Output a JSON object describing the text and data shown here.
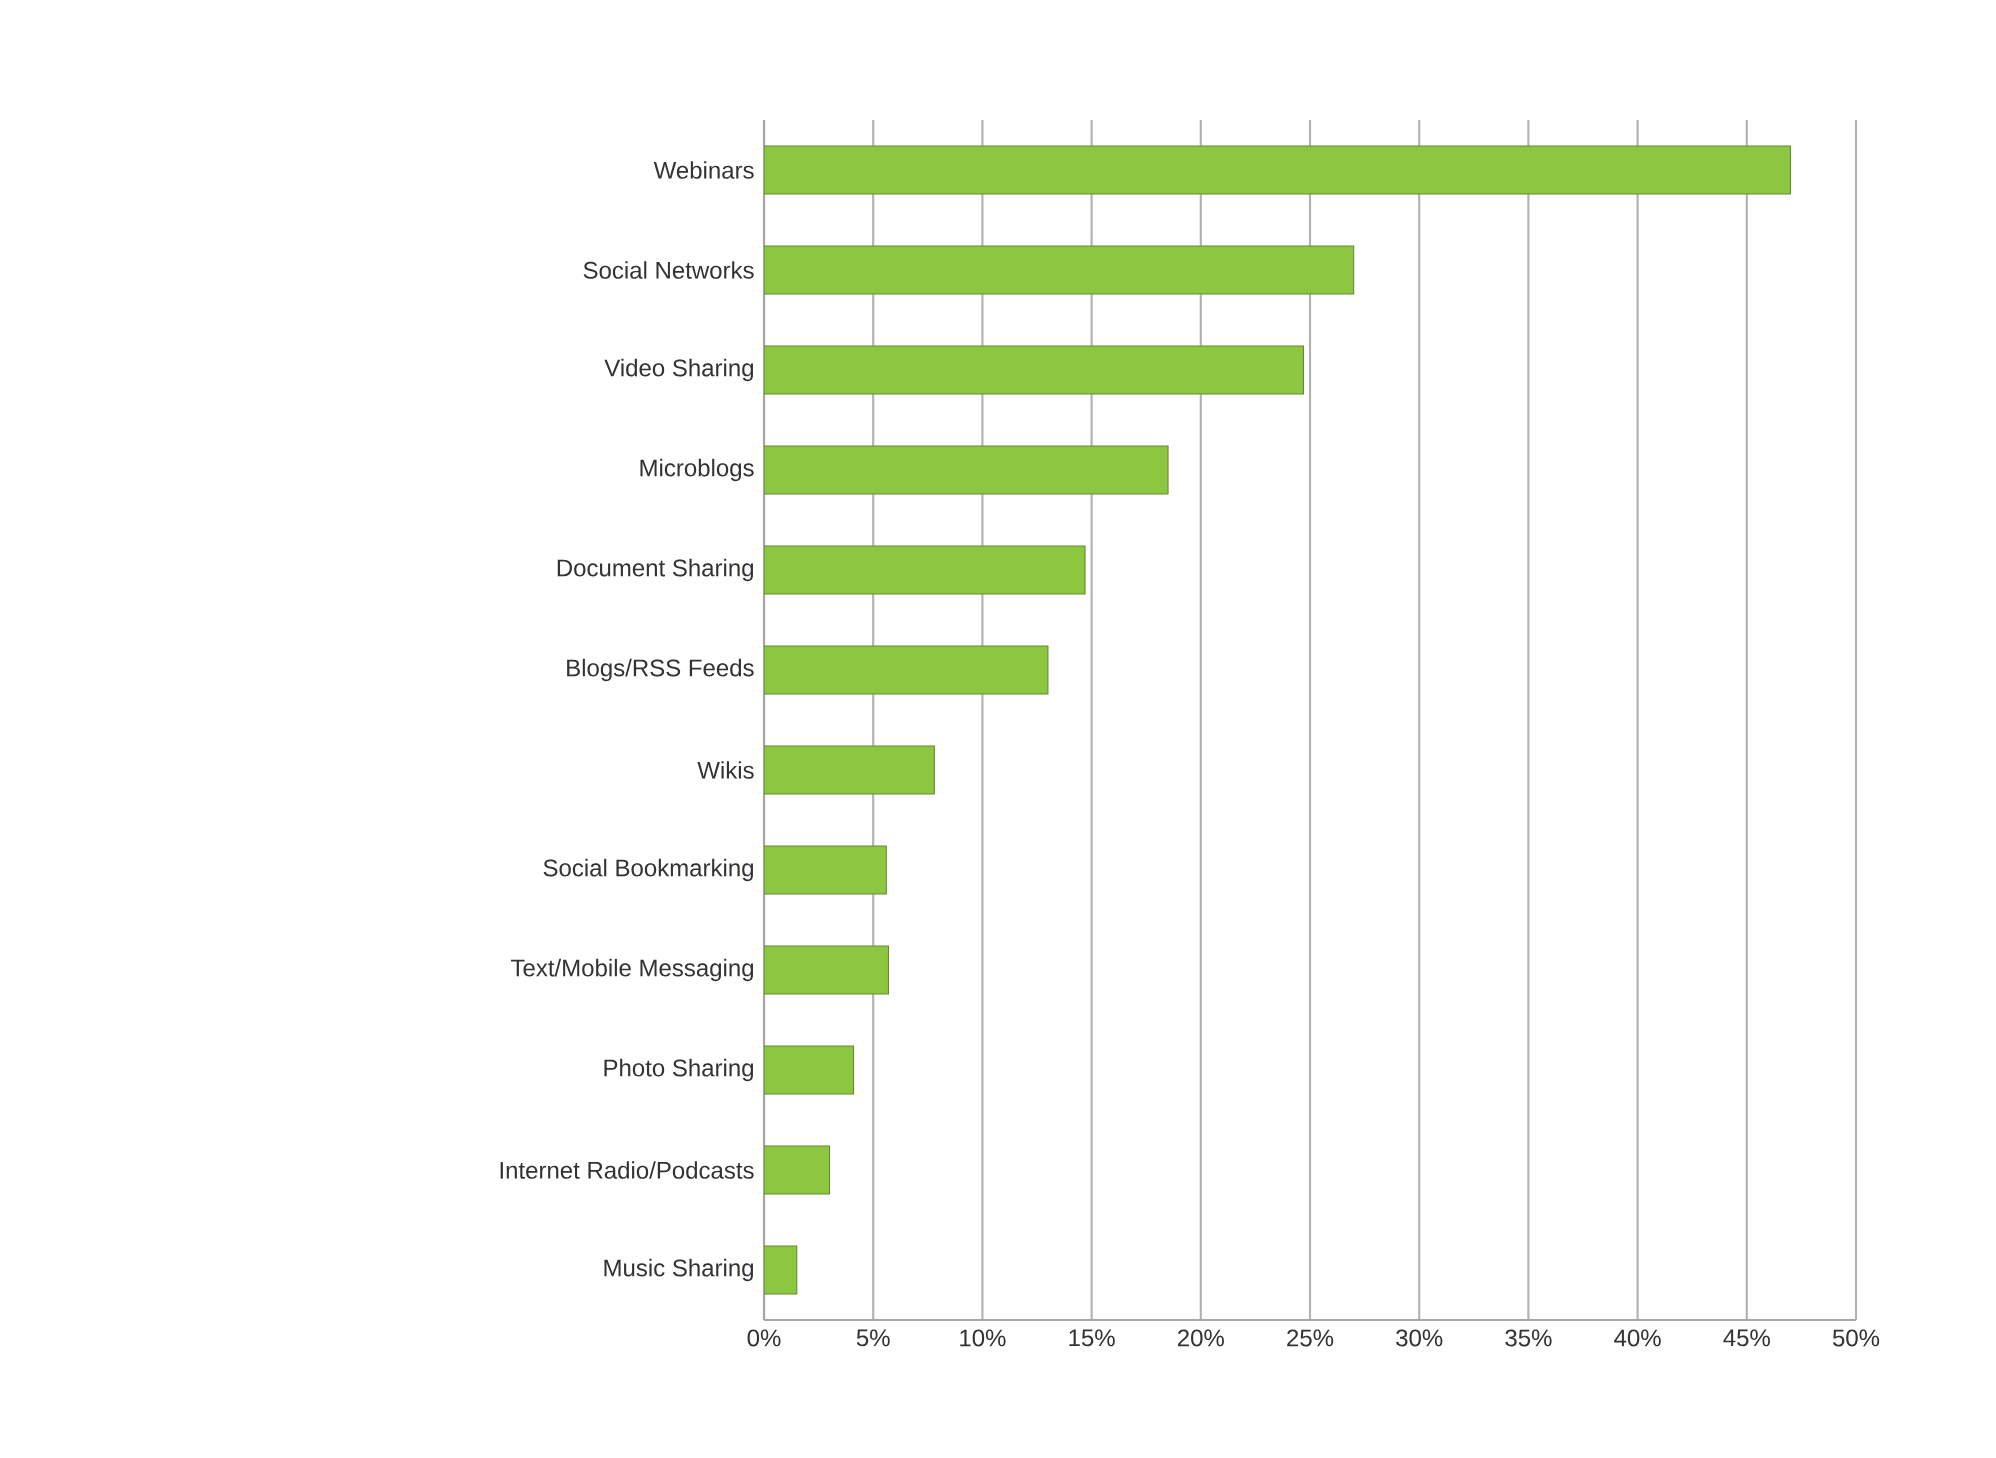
{
  "chart_data": {
    "type": "bar",
    "orientation": "horizontal",
    "categories": [
      "Webinars",
      "Social Networks",
      "Video Sharing",
      "Microblogs",
      "Document Sharing",
      "Blogs/RSS Feeds",
      "Wikis",
      "Social Bookmarking",
      "Text/Mobile Messaging",
      "Photo Sharing",
      "Internet Radio/Podcasts",
      "Music Sharing"
    ],
    "values": [
      47,
      27,
      24.7,
      18.5,
      14.7,
      13,
      7.8,
      5.6,
      5.7,
      4.1,
      3,
      1.5
    ],
    "color": "#8dc641",
    "xlim": [
      0,
      50
    ],
    "xticks": [
      {
        "value": 0,
        "label": "0%"
      },
      {
        "value": 5,
        "label": "5%"
      },
      {
        "value": 10,
        "label": "10%"
      },
      {
        "value": 15,
        "label": "15%"
      },
      {
        "value": 20,
        "label": "20%"
      },
      {
        "value": 25,
        "label": "25%"
      },
      {
        "value": 30,
        "label": "30%"
      },
      {
        "value": 35,
        "label": "35%"
      },
      {
        "value": 40,
        "label": "40%"
      },
      {
        "value": 45,
        "label": "45%"
      },
      {
        "value": 50,
        "label": "50%"
      }
    ],
    "grid": "x"
  }
}
